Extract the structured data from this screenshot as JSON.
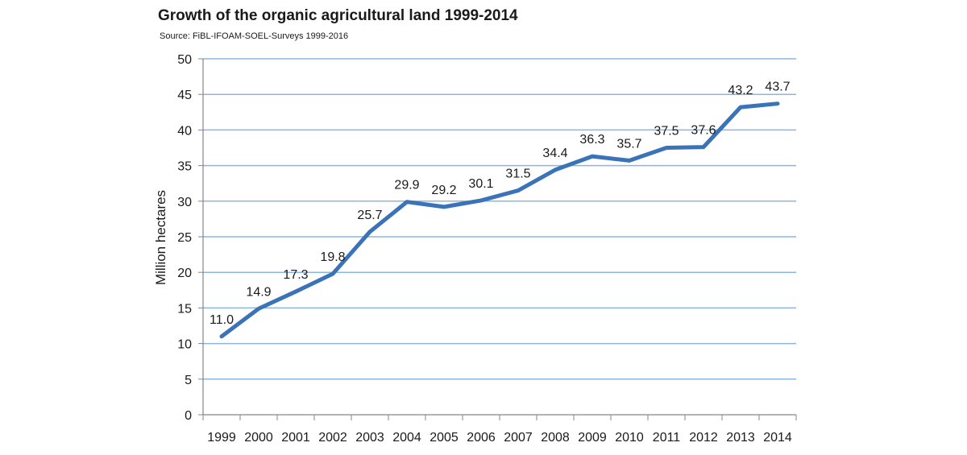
{
  "chart_data": {
    "type": "line",
    "title": "Growth of the organic agricultural land 1999-2014",
    "subtitle": "Source: FiBL-IFOAM-SOEL-Surveys 1999-2016",
    "xlabel": "",
    "ylabel": "Million hectares",
    "ylim": [
      0,
      50
    ],
    "yticks": [
      0,
      5,
      10,
      15,
      20,
      25,
      30,
      35,
      40,
      45,
      50
    ],
    "grid": true,
    "categories": [
      "1999",
      "2000",
      "2001",
      "2002",
      "2003",
      "2004",
      "2005",
      "2006",
      "2007",
      "2008",
      "2009",
      "2010",
      "2011",
      "2012",
      "2013",
      "2014"
    ],
    "values": [
      11.0,
      14.9,
      17.3,
      19.8,
      25.7,
      29.9,
      29.2,
      30.1,
      31.5,
      34.4,
      36.3,
      35.7,
      37.5,
      37.6,
      43.2,
      43.7
    ],
    "data_labels": [
      "11.0",
      "14.9",
      "17.3",
      "19.8",
      "25.7",
      "29.9",
      "29.2",
      "30.1",
      "31.5",
      "34.4",
      "36.3",
      "35.7",
      "37.5",
      "37.6",
      "43.2",
      "43.7"
    ],
    "colors": {
      "line": "#3b73b9",
      "grid": "#8db4e2",
      "axis": "#868686"
    }
  }
}
